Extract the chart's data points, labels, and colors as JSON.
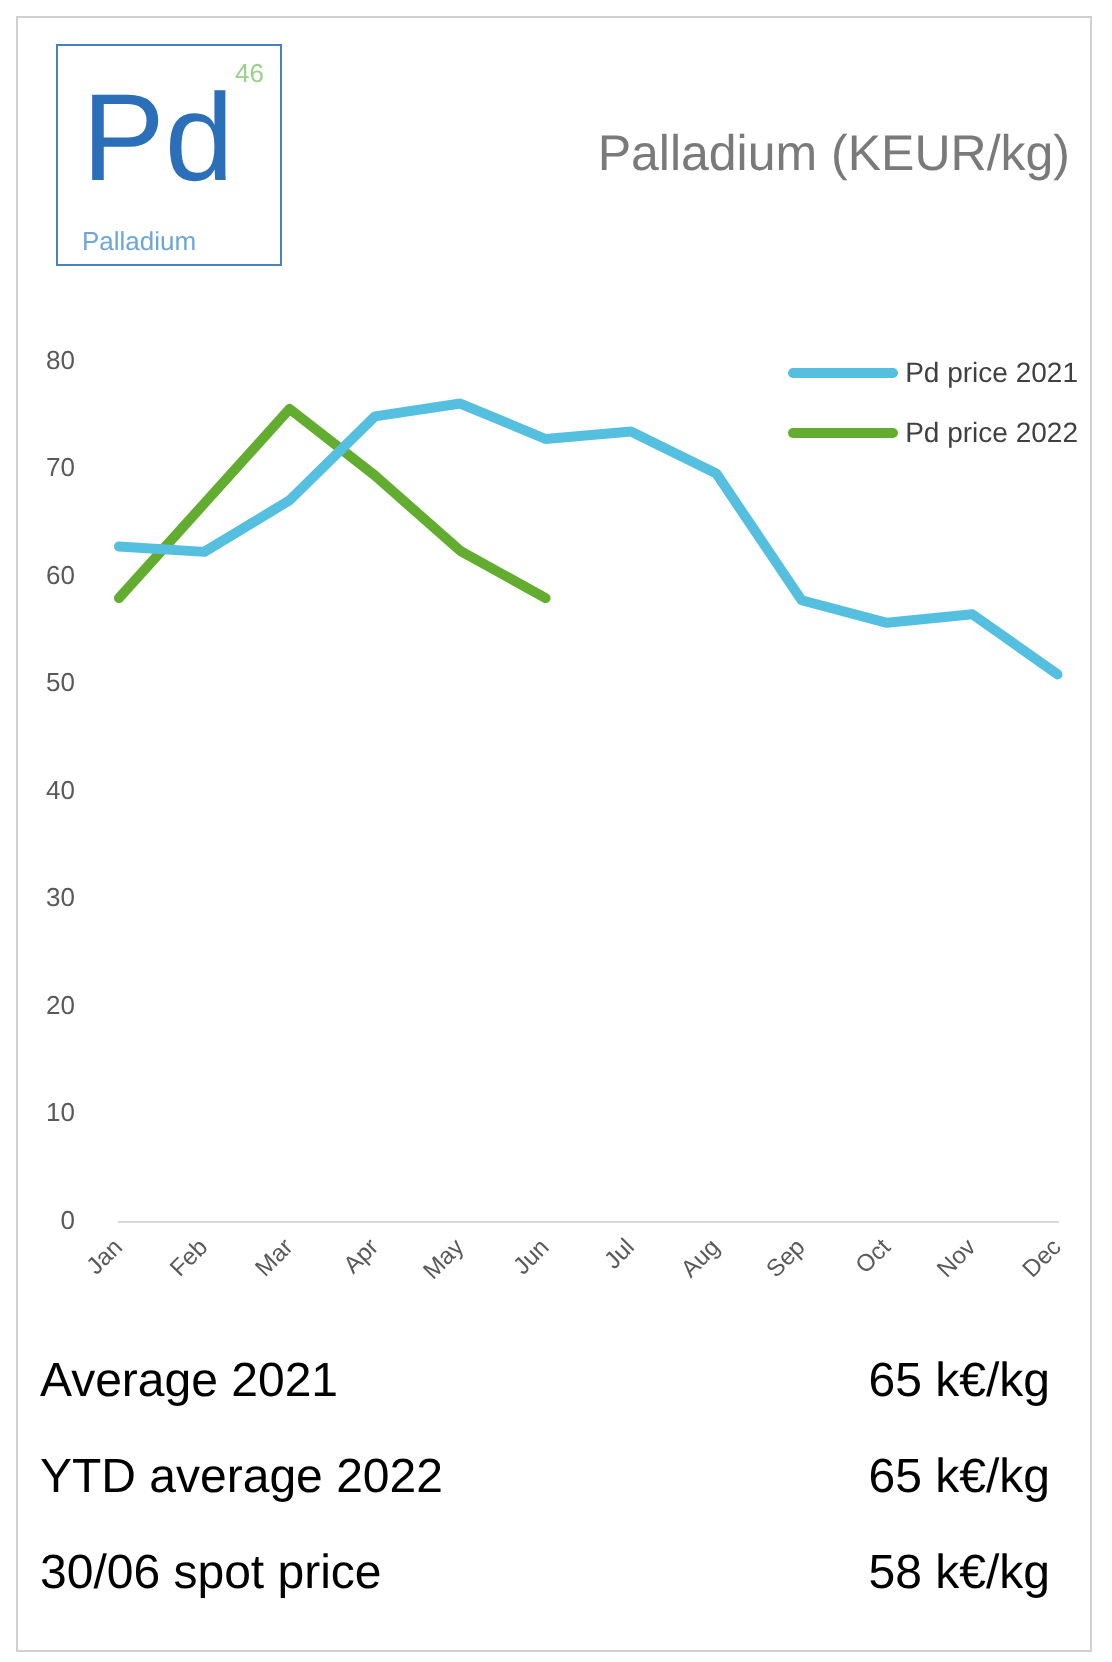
{
  "chart_data": {
    "type": "line",
    "title": "Palladium (KEUR/kg)",
    "categories": [
      "Jan",
      "Feb",
      "Mar",
      "Apr",
      "May",
      "Jun",
      "Jul",
      "Aug",
      "Sep",
      "Oct",
      "Nov",
      "Dec"
    ],
    "series": [
      {
        "name": "Pd price 2021",
        "color": "#55bfe0",
        "values": [
          62.8,
          62.3,
          67.1,
          74.9,
          76.1,
          72.8,
          73.5,
          69.6,
          57.8,
          55.7,
          56.5,
          50.9
        ]
      },
      {
        "name": "Pd price 2022",
        "color": "#62ad2f",
        "values": [
          58.0,
          66.8,
          75.6,
          69.4,
          62.4,
          58.0,
          null,
          null,
          null,
          null,
          null,
          null
        ]
      }
    ],
    "ylim": [
      0,
      80
    ],
    "yticks": [
      0,
      10,
      20,
      30,
      40,
      50,
      60,
      70,
      80
    ],
    "grid": false,
    "legend": "top right",
    "marker": "none",
    "line_style": "solid",
    "annotations": [
      "Pd",
      "46",
      "Palladium",
      "Average 2021",
      "65 k€/kg",
      "YTD average 2022",
      "65 k€/kg",
      "30/06 spot price",
      "58 k€/kg"
    ]
  }
}
